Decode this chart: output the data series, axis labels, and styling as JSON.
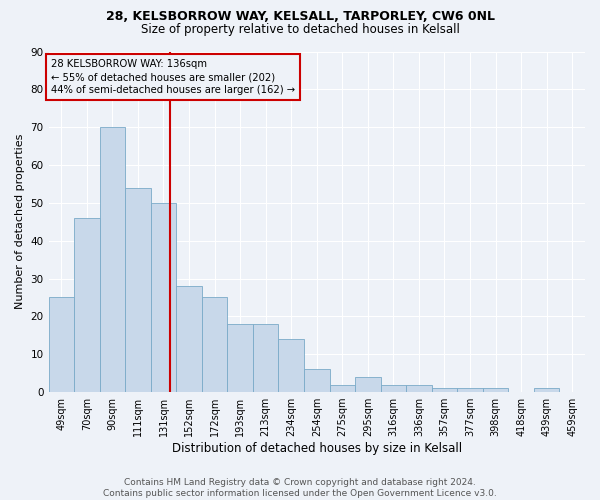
{
  "title1": "28, KELSBORROW WAY, KELSALL, TARPORLEY, CW6 0NL",
  "title2": "Size of property relative to detached houses in Kelsall",
  "xlabel": "Distribution of detached houses by size in Kelsall",
  "ylabel": "Number of detached properties",
  "categories": [
    "49sqm",
    "70sqm",
    "90sqm",
    "111sqm",
    "131sqm",
    "152sqm",
    "172sqm",
    "193sqm",
    "213sqm",
    "234sqm",
    "254sqm",
    "275sqm",
    "295sqm",
    "316sqm",
    "336sqm",
    "357sqm",
    "377sqm",
    "398sqm",
    "418sqm",
    "439sqm",
    "459sqm"
  ],
  "values": [
    25,
    46,
    70,
    54,
    50,
    28,
    25,
    18,
    18,
    14,
    6,
    2,
    4,
    2,
    2,
    1,
    1,
    1,
    0,
    1,
    0
  ],
  "bar_color": "#c8d8ea",
  "bar_edge_color": "#7aaac8",
  "bar_edge_width": 0.6,
  "vline_x_index": 4.27,
  "vline_color": "#cc0000",
  "annotation_text": "28 KELSBORROW WAY: 136sqm\n← 55% of detached houses are smaller (202)\n44% of semi-detached houses are larger (162) →",
  "annotation_box_color": "#cc0000",
  "annotation_bg": "#eef2f8",
  "ylim": [
    0,
    90
  ],
  "yticks": [
    0,
    10,
    20,
    30,
    40,
    50,
    60,
    70,
    80,
    90
  ],
  "footer": "Contains HM Land Registry data © Crown copyright and database right 2024.\nContains public sector information licensed under the Open Government Licence v3.0.",
  "bg_color": "#eef2f8",
  "grid_color": "#ffffff",
  "title_fontsize": 9,
  "subtitle_fontsize": 8.5,
  "ylabel_fontsize": 8,
  "xlabel_fontsize": 8.5,
  "tick_fontsize": 7,
  "footer_fontsize": 6.5
}
